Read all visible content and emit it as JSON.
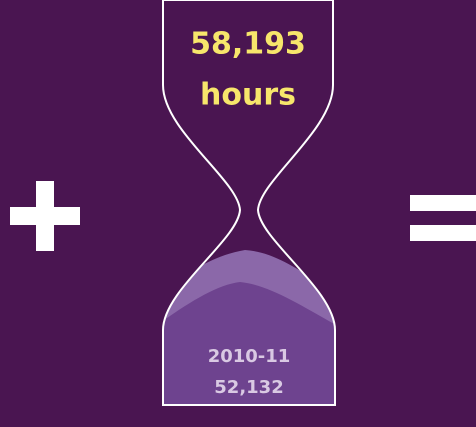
{
  "top": {
    "value": "58,193",
    "unit": "hours"
  },
  "bottom": {
    "period": "2010-11",
    "value": "52,132"
  }
}
